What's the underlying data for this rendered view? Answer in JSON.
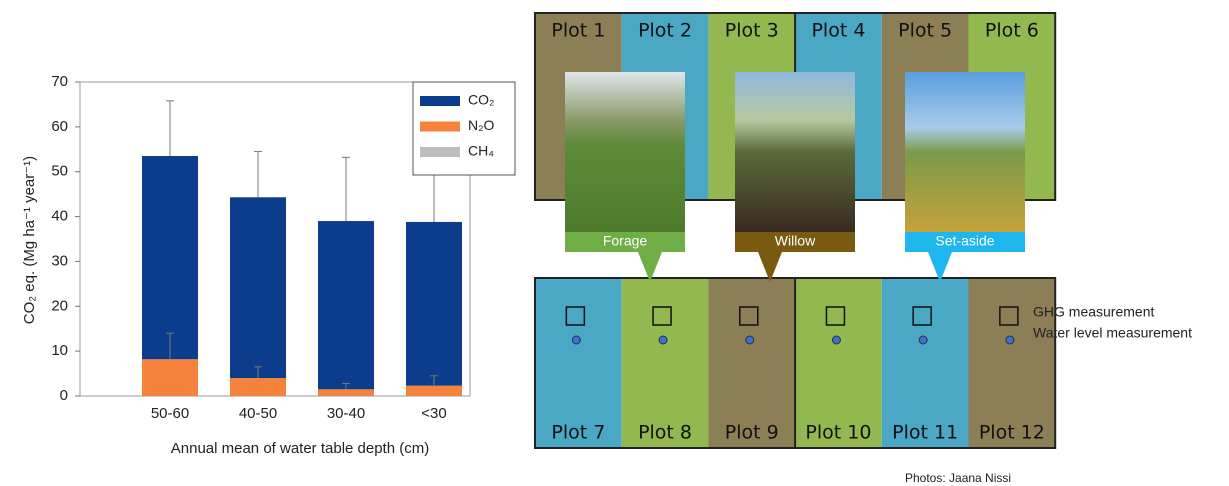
{
  "chart_data": {
    "type": "bar",
    "stacked": true,
    "categories": [
      "50-60",
      "40-50",
      "30-40",
      "<30"
    ],
    "series": [
      {
        "name": "CO₂",
        "color": "#0b3d8c",
        "values": [
          45.3,
          40.3,
          37.5,
          36.5
        ],
        "errors": [
          12.3,
          10.2,
          14.2,
          11.2
        ]
      },
      {
        "name": "N₂O",
        "color": "#f5823c",
        "values": [
          8.2,
          4.0,
          1.5,
          2.3
        ],
        "errors": [
          5.8,
          2.5,
          1.3,
          2.2
        ]
      },
      {
        "name": "CH₄",
        "color": "#bdbdbd",
        "values": [
          0,
          0,
          0,
          0
        ]
      }
    ],
    "xlabel": "Annual mean of water table depth (cm)",
    "ylabel": "CO₂ eq. (Mg ha⁻¹ year⁻¹)",
    "ylim": [
      0,
      70
    ],
    "yticks": [
      0,
      10,
      20,
      30,
      40,
      50,
      60,
      70
    ],
    "grid": false,
    "legend": "upper right"
  },
  "diagram": {
    "top_plots": [
      "Plot 1",
      "Plot 2",
      "Plot 3",
      "Plot 4",
      "Plot 5",
      "Plot 6"
    ],
    "bottom_plots": [
      "Plot 7",
      "Plot 8",
      "Plot 9",
      "Plot 10",
      "Plot 11",
      "Plot 12"
    ],
    "photo_labels": [
      "Forage",
      "Willow",
      "Set-aside"
    ],
    "legend": [
      "GHG measurement",
      "Water level measurement"
    ],
    "credit": "Photos: Jaana Nissi"
  }
}
